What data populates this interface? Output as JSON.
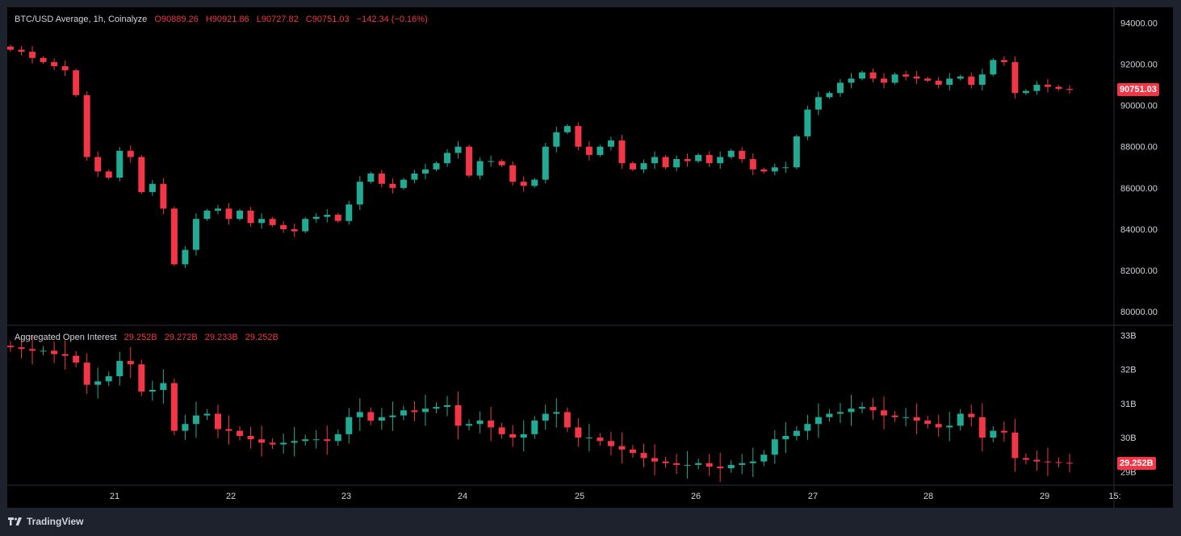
{
  "price_legend": {
    "title": "BTC/USD Average, 1h, Coinalyze",
    "open": "O90889.26",
    "high": "H90921.86",
    "low": "L90727.82",
    "close": "C90751.03",
    "change": "−142.34 (−0.16%)"
  },
  "oi_legend": {
    "title": "Aggregated Open Interest",
    "open": "29.252B",
    "high": "29.272B",
    "low": "29.233B",
    "close": "29.252B"
  },
  "price_badge": "90751.03",
  "oi_badge": "29.252B",
  "footer": {
    "brand": "TradingView"
  },
  "colors": {
    "up": "#22ab94",
    "down": "#f23645",
    "background": "#000000",
    "frame": "#1e222d"
  },
  "chart_data": [
    {
      "type": "line",
      "title": "BTC/USD Average, 1h, Coinalyze",
      "style": "candlestick",
      "series": [
        {
          "values": [
            92700,
            92600,
            92300,
            92100,
            91900,
            91700,
            90500,
            87500,
            86800,
            86500,
            87800,
            87500,
            85800,
            86200,
            85000,
            82300,
            83000,
            84500,
            84900,
            85000,
            84500,
            84900,
            84300,
            84500,
            84200,
            84000,
            83900,
            84500,
            84600,
            84700,
            84400,
            85200,
            86300,
            86700,
            86200,
            86000,
            86400,
            86700,
            86900,
            87200,
            87700,
            88000,
            86600,
            87300,
            87300,
            87100,
            86300,
            86100,
            86400,
            88000,
            88700,
            89000,
            88000,
            87600,
            88000,
            88300,
            87200,
            86900,
            87200,
            87500,
            87000,
            87400,
            87300,
            87600,
            87200,
            87500,
            87800,
            87400,
            86900,
            86800,
            87000,
            87000,
            88500,
            89800,
            90400,
            90600,
            91100,
            91300,
            91600,
            91300,
            91100,
            91500,
            91400,
            91300,
            91200,
            91000,
            91300,
            91400,
            91000,
            91500,
            92200,
            92100,
            90600,
            90700,
            91000,
            90900,
            90800,
            90751.03
          ]
        }
      ],
      "x_ticks": [
        "21",
        "22",
        "23",
        "24",
        "25",
        "26",
        "27",
        "28",
        "29",
        "15:"
      ],
      "y_ticks": [
        "94000.00",
        "92000.00",
        "90000.00",
        "88000.00",
        "86000.00",
        "84000.00",
        "82000.00",
        "80000.00"
      ],
      "ylim": [
        79500,
        94600
      ],
      "grid": false
    },
    {
      "type": "line",
      "title": "Aggregated Open Interest",
      "style": "candlestick",
      "series": [
        {
          "values": [
            32.65,
            32.6,
            32.55,
            32.55,
            32.45,
            32.4,
            32.2,
            31.55,
            31.65,
            31.8,
            32.25,
            32.15,
            31.35,
            31.4,
            31.6,
            30.2,
            30.4,
            30.65,
            30.7,
            30.25,
            30.2,
            30.05,
            29.95,
            29.85,
            29.8,
            29.85,
            29.9,
            29.95,
            29.95,
            29.9,
            30.1,
            30.6,
            30.75,
            30.5,
            30.6,
            30.65,
            30.8,
            30.75,
            30.85,
            30.9,
            30.95,
            30.35,
            30.4,
            30.5,
            30.3,
            30.1,
            30.0,
            30.1,
            30.5,
            30.7,
            30.75,
            30.3,
            30.0,
            30.0,
            29.9,
            29.75,
            29.65,
            29.55,
            29.4,
            29.3,
            29.25,
            29.2,
            29.2,
            29.25,
            29.15,
            29.1,
            29.2,
            29.25,
            29.3,
            29.5,
            29.95,
            30.05,
            30.2,
            30.4,
            30.6,
            30.7,
            30.75,
            30.85,
            30.9,
            30.8,
            30.65,
            30.6,
            30.6,
            30.5,
            30.4,
            30.3,
            30.35,
            30.7,
            30.6,
            30.0,
            30.2,
            30.15,
            29.4,
            29.35,
            29.3,
            29.28,
            29.26,
            29.252
          ]
        }
      ],
      "y_ticks": [
        "33B",
        "32B",
        "31B",
        "30B",
        "29B"
      ],
      "ylim": [
        28.7,
        33.2
      ],
      "grid": false
    }
  ]
}
